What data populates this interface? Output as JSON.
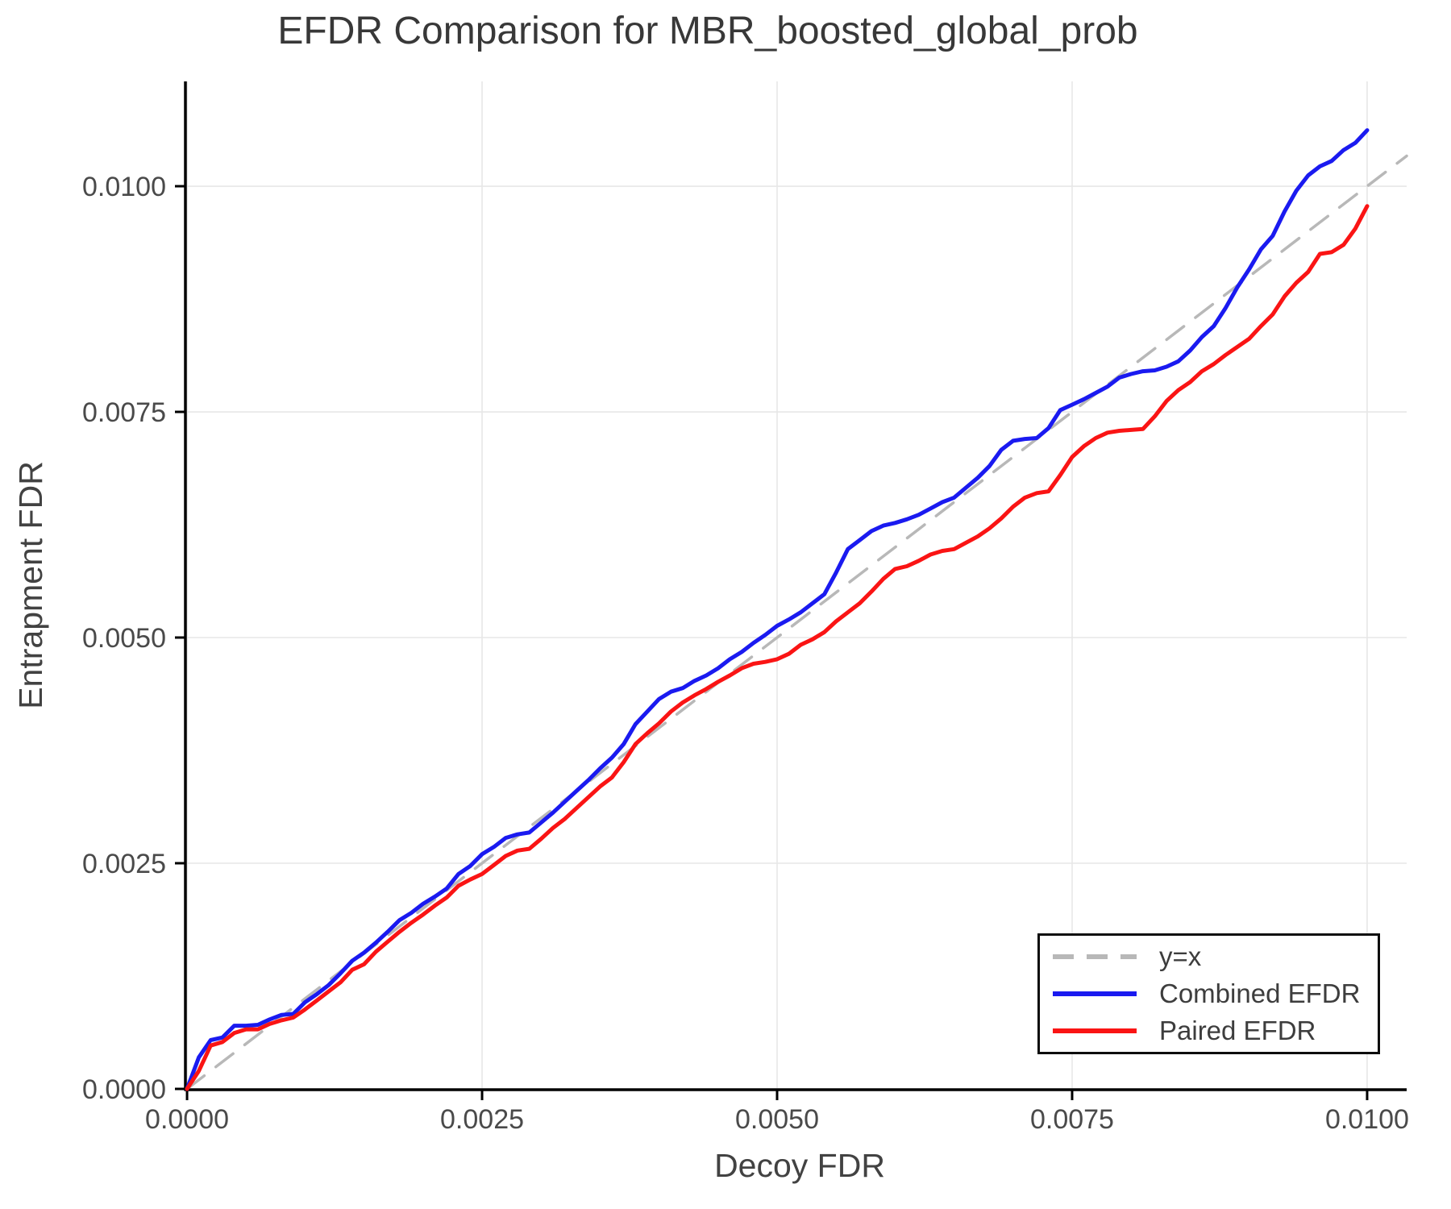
{
  "title": "EFDR Comparison for MBR_boosted_global_prob",
  "chart_data": {
    "type": "line",
    "title": "EFDR Comparison for MBR_boosted_global_prob",
    "xlabel": "Decoy FDR",
    "ylabel": "Entrapment FDR",
    "xlim": [
      -1.4e-05,
      0.010335
    ],
    "ylim": [
      -9e-06,
      0.011161
    ],
    "grid": true,
    "legend_position": "bottom-right",
    "xticks": {
      "values": [
        0.0,
        0.0025,
        0.005,
        0.0075,
        0.01
      ],
      "labels": [
        "0.0000",
        "0.0025",
        "0.0050",
        "0.0075",
        "0.0100"
      ]
    },
    "yticks": {
      "values": [
        0.0,
        0.0025,
        0.005,
        0.0075,
        0.01
      ],
      "labels": [
        "0.0000",
        "0.0025",
        "0.0050",
        "0.0075",
        "0.0100"
      ]
    },
    "colors": {
      "identity": "#b8b8b8",
      "combined": "#1a1af0",
      "paired": "#fa1414",
      "grid": "#e7e7e7",
      "axis": "#000000"
    },
    "series": [
      {
        "name": "y=x",
        "color": "#b8b8b8",
        "style": "dashed",
        "width": 3.5,
        "points": [
          [
            0.0,
            0.0
          ],
          [
            0.010335,
            0.010335
          ]
        ]
      },
      {
        "name": "Combined EFDR",
        "color": "#1a1af0",
        "style": "solid",
        "width": 5,
        "points": [
          [
            0.0,
            0.0
          ],
          [
            0.0001,
            0.00035
          ],
          [
            0.0002,
            0.00054
          ],
          [
            0.0003,
            0.00057
          ],
          [
            0.0004,
            0.0007
          ],
          [
            0.0005,
            0.0007
          ],
          [
            0.0006,
            0.00071
          ],
          [
            0.0007,
            0.00077
          ],
          [
            0.0008,
            0.00082
          ],
          [
            0.0009,
            0.00083
          ],
          [
            0.001,
            0.00096
          ],
          [
            0.0011,
            0.00105
          ],
          [
            0.0012,
            0.00115
          ],
          [
            0.0013,
            0.00128
          ],
          [
            0.0014,
            0.00142
          ],
          [
            0.0015,
            0.00151
          ],
          [
            0.0016,
            0.00162
          ],
          [
            0.0017,
            0.00174
          ],
          [
            0.0018,
            0.00187
          ],
          [
            0.0019,
            0.00195
          ],
          [
            0.002,
            0.00205
          ],
          [
            0.0021,
            0.00213
          ],
          [
            0.0022,
            0.00222
          ],
          [
            0.0023,
            0.00238
          ],
          [
            0.0024,
            0.00247
          ],
          [
            0.0025,
            0.0026
          ],
          [
            0.0026,
            0.00268
          ],
          [
            0.0027,
            0.00278
          ],
          [
            0.0028,
            0.00282
          ],
          [
            0.0029,
            0.00284
          ],
          [
            0.003,
            0.00295
          ],
          [
            0.0031,
            0.00306
          ],
          [
            0.0032,
            0.00318
          ],
          [
            0.0033,
            0.0033
          ],
          [
            0.0034,
            0.00342
          ],
          [
            0.0035,
            0.00355
          ],
          [
            0.0036,
            0.00367
          ],
          [
            0.0037,
            0.00382
          ],
          [
            0.0038,
            0.00404
          ],
          [
            0.0039,
            0.00418
          ],
          [
            0.004,
            0.00432
          ],
          [
            0.0041,
            0.0044
          ],
          [
            0.0042,
            0.00444
          ],
          [
            0.0043,
            0.00452
          ],
          [
            0.0044,
            0.00458
          ],
          [
            0.0045,
            0.00466
          ],
          [
            0.0046,
            0.00476
          ],
          [
            0.0047,
            0.00484
          ],
          [
            0.0048,
            0.00494
          ],
          [
            0.0049,
            0.00503
          ],
          [
            0.005,
            0.00513
          ],
          [
            0.0051,
            0.0052
          ],
          [
            0.0052,
            0.00528
          ],
          [
            0.0053,
            0.00538
          ],
          [
            0.0054,
            0.00548
          ],
          [
            0.0055,
            0.00572
          ],
          [
            0.0056,
            0.00598
          ],
          [
            0.0057,
            0.00608
          ],
          [
            0.0058,
            0.00618
          ],
          [
            0.0059,
            0.00624
          ],
          [
            0.006,
            0.00627
          ],
          [
            0.0061,
            0.00631
          ],
          [
            0.0062,
            0.00636
          ],
          [
            0.0063,
            0.00643
          ],
          [
            0.0064,
            0.0065
          ],
          [
            0.0065,
            0.00655
          ],
          [
            0.0066,
            0.00666
          ],
          [
            0.0067,
            0.00677
          ],
          [
            0.0068,
            0.0069
          ],
          [
            0.0069,
            0.00708
          ],
          [
            0.007,
            0.00718
          ],
          [
            0.0071,
            0.0072
          ],
          [
            0.0072,
            0.00721
          ],
          [
            0.0073,
            0.00732
          ],
          [
            0.0074,
            0.00752
          ],
          [
            0.0075,
            0.00758
          ],
          [
            0.0076,
            0.00764
          ],
          [
            0.0077,
            0.00771
          ],
          [
            0.0078,
            0.00778
          ],
          [
            0.0079,
            0.00788
          ],
          [
            0.008,
            0.00792
          ],
          [
            0.0081,
            0.00795
          ],
          [
            0.0082,
            0.00796
          ],
          [
            0.0083,
            0.008
          ],
          [
            0.0084,
            0.00806
          ],
          [
            0.0085,
            0.00818
          ],
          [
            0.0086,
            0.00833
          ],
          [
            0.0087,
            0.00845
          ],
          [
            0.0088,
            0.00865
          ],
          [
            0.0089,
            0.00888
          ],
          [
            0.009,
            0.00908
          ],
          [
            0.0091,
            0.0093
          ],
          [
            0.0092,
            0.00945
          ],
          [
            0.0093,
            0.00972
          ],
          [
            0.0094,
            0.00995
          ],
          [
            0.0095,
            0.01012
          ],
          [
            0.0096,
            0.01022
          ],
          [
            0.0097,
            0.01028
          ],
          [
            0.0098,
            0.0104
          ],
          [
            0.0099,
            0.01048
          ],
          [
            0.01,
            0.01062
          ]
        ]
      },
      {
        "name": "Paired EFDR",
        "color": "#fa1414",
        "style": "solid",
        "width": 5,
        "points": [
          [
            0.0,
            0.0
          ],
          [
            0.0001,
            0.0002
          ],
          [
            0.0002,
            0.00048
          ],
          [
            0.0003,
            0.00052
          ],
          [
            0.0004,
            0.00062
          ],
          [
            0.0005,
            0.00066
          ],
          [
            0.0006,
            0.00066
          ],
          [
            0.0007,
            0.00072
          ],
          [
            0.0008,
            0.00076
          ],
          [
            0.0009,
            0.00079
          ],
          [
            0.001,
            0.00088
          ],
          [
            0.0011,
            0.00098
          ],
          [
            0.0012,
            0.00108
          ],
          [
            0.0013,
            0.00118
          ],
          [
            0.0014,
            0.00132
          ],
          [
            0.0015,
            0.00138
          ],
          [
            0.0016,
            0.00152
          ],
          [
            0.0017,
            0.00163
          ],
          [
            0.0018,
            0.00174
          ],
          [
            0.0019,
            0.00184
          ],
          [
            0.002,
            0.00193
          ],
          [
            0.0021,
            0.00203
          ],
          [
            0.0022,
            0.00212
          ],
          [
            0.0023,
            0.00225
          ],
          [
            0.0024,
            0.00232
          ],
          [
            0.0025,
            0.00238
          ],
          [
            0.0026,
            0.00248
          ],
          [
            0.0027,
            0.00258
          ],
          [
            0.0028,
            0.00264
          ],
          [
            0.0029,
            0.00266
          ],
          [
            0.003,
            0.00277
          ],
          [
            0.0031,
            0.00289
          ],
          [
            0.0032,
            0.00299
          ],
          [
            0.0033,
            0.00311
          ],
          [
            0.0034,
            0.00323
          ],
          [
            0.0035,
            0.00335
          ],
          [
            0.0036,
            0.00345
          ],
          [
            0.0037,
            0.00362
          ],
          [
            0.0038,
            0.00382
          ],
          [
            0.0039,
            0.00394
          ],
          [
            0.004,
            0.00405
          ],
          [
            0.0041,
            0.00418
          ],
          [
            0.0042,
            0.00428
          ],
          [
            0.0043,
            0.00436
          ],
          [
            0.0044,
            0.00443
          ],
          [
            0.0045,
            0.00451
          ],
          [
            0.0046,
            0.00458
          ],
          [
            0.0047,
            0.00466
          ],
          [
            0.0048,
            0.00471
          ],
          [
            0.0049,
            0.00473
          ],
          [
            0.005,
            0.00476
          ],
          [
            0.0051,
            0.00482
          ],
          [
            0.0052,
            0.00492
          ],
          [
            0.0053,
            0.00498
          ],
          [
            0.0054,
            0.00506
          ],
          [
            0.0055,
            0.00518
          ],
          [
            0.0056,
            0.00528
          ],
          [
            0.0057,
            0.00538
          ],
          [
            0.0058,
            0.00551
          ],
          [
            0.0059,
            0.00565
          ],
          [
            0.006,
            0.00576
          ],
          [
            0.0061,
            0.00579
          ],
          [
            0.0062,
            0.00585
          ],
          [
            0.0063,
            0.00592
          ],
          [
            0.0064,
            0.00596
          ],
          [
            0.0065,
            0.00598
          ],
          [
            0.0066,
            0.00605
          ],
          [
            0.0067,
            0.00612
          ],
          [
            0.0068,
            0.00621
          ],
          [
            0.0069,
            0.00632
          ],
          [
            0.007,
            0.00645
          ],
          [
            0.0071,
            0.00655
          ],
          [
            0.0072,
            0.0066
          ],
          [
            0.0073,
            0.00662
          ],
          [
            0.0074,
            0.0068
          ],
          [
            0.0075,
            0.007
          ],
          [
            0.0076,
            0.00712
          ],
          [
            0.0077,
            0.00721
          ],
          [
            0.0078,
            0.00727
          ],
          [
            0.0079,
            0.00729
          ],
          [
            0.008,
            0.0073
          ],
          [
            0.0081,
            0.00731
          ],
          [
            0.0082,
            0.00745
          ],
          [
            0.0083,
            0.00762
          ],
          [
            0.0084,
            0.00774
          ],
          [
            0.0085,
            0.00783
          ],
          [
            0.0086,
            0.00795
          ],
          [
            0.0087,
            0.00803
          ],
          [
            0.0088,
            0.00813
          ],
          [
            0.0089,
            0.00822
          ],
          [
            0.009,
            0.00831
          ],
          [
            0.0091,
            0.00845
          ],
          [
            0.0092,
            0.00858
          ],
          [
            0.0093,
            0.00878
          ],
          [
            0.0094,
            0.00893
          ],
          [
            0.0095,
            0.00905
          ],
          [
            0.0096,
            0.00925
          ],
          [
            0.0097,
            0.00927
          ],
          [
            0.0098,
            0.00935
          ],
          [
            0.0099,
            0.00953
          ],
          [
            0.01,
            0.00978
          ]
        ]
      }
    ]
  },
  "legend": {
    "items": [
      {
        "label": "y=x"
      },
      {
        "label": "Combined EFDR"
      },
      {
        "label": "Paired EFDR"
      }
    ]
  }
}
